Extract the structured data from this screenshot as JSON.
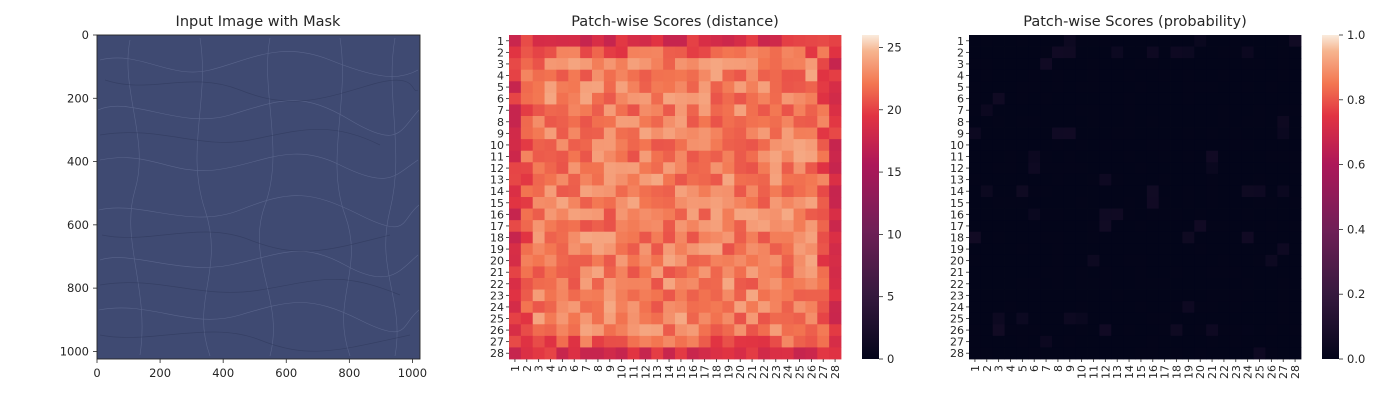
{
  "chart_data": [
    {
      "type": "image",
      "title": "Input Image with Mask",
      "xlabel": "",
      "ylabel": "",
      "xlim": [
        0,
        1024
      ],
      "ylim": [
        1024,
        0
      ],
      "xticks": [
        "0",
        "200",
        "400",
        "600",
        "800",
        "1000"
      ],
      "yticks": [
        "0",
        "200",
        "400",
        "600",
        "800",
        "1000"
      ],
      "image_color": "#3f4a72"
    },
    {
      "type": "heatmap",
      "title": "Patch-wise Scores (distance)",
      "xlabel": "",
      "ylabel": "",
      "rows": 28,
      "cols": 28,
      "row_labels": [
        "1",
        "2",
        "3",
        "4",
        "5",
        "6",
        "7",
        "8",
        "9",
        "10",
        "11",
        "12",
        "13",
        "14",
        "15",
        "16",
        "17",
        "18",
        "19",
        "20",
        "21",
        "22",
        "23",
        "24",
        "25",
        "26",
        "27",
        "28"
      ],
      "col_labels": [
        "1",
        "2",
        "3",
        "4",
        "5",
        "6",
        "7",
        "8",
        "9",
        "10",
        "11",
        "12",
        "13",
        "14",
        "15",
        "16",
        "17",
        "18",
        "19",
        "20",
        "21",
        "22",
        "23",
        "24",
        "25",
        "26",
        "27",
        "28"
      ],
      "colorbar": {
        "min": 0,
        "max": 26,
        "ticks": [
          "0",
          "5",
          "10",
          "15",
          "20",
          "25"
        ]
      },
      "value_range": [
        17.5,
        25.5
      ],
      "colormap": "rocket"
    },
    {
      "type": "heatmap",
      "title": "Patch-wise Scores (probability)",
      "xlabel": "",
      "ylabel": "",
      "rows": 28,
      "cols": 28,
      "row_labels": [
        "1",
        "2",
        "3",
        "4",
        "5",
        "6",
        "7",
        "8",
        "9",
        "10",
        "11",
        "12",
        "13",
        "14",
        "15",
        "16",
        "17",
        "18",
        "19",
        "20",
        "21",
        "22",
        "23",
        "24",
        "25",
        "26",
        "27",
        "28"
      ],
      "col_labels": [
        "1",
        "2",
        "3",
        "4",
        "5",
        "6",
        "7",
        "8",
        "9",
        "10",
        "11",
        "12",
        "13",
        "14",
        "15",
        "16",
        "17",
        "18",
        "19",
        "20",
        "21",
        "22",
        "23",
        "24",
        "25",
        "26",
        "27",
        "28"
      ],
      "colorbar": {
        "min": 0,
        "max": 1,
        "ticks": [
          "0.0",
          "0.2",
          "0.4",
          "0.6",
          "0.8",
          "1.0"
        ]
      },
      "value_range": [
        0,
        0.06
      ],
      "colormap": "rocket"
    }
  ]
}
